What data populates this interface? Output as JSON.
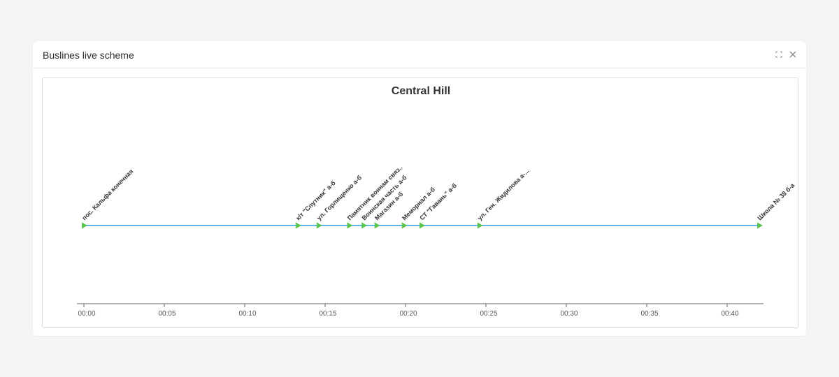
{
  "panel": {
    "title": "Buslines live scheme"
  },
  "header_icons": {
    "expand": "expand-icon",
    "close": "close-icon"
  },
  "colors": {
    "route_line": "#5bb8e8",
    "stop_marker": "#5cc44f",
    "axis": "#666666"
  },
  "chart_data": {
    "type": "line",
    "title": "Central Hill",
    "xlabel": "",
    "ylabel": "",
    "x_unit": "minutes",
    "xlim": [
      0,
      42
    ],
    "ticks": [
      {
        "value": 0,
        "label": "00:00"
      },
      {
        "value": 5,
        "label": "00:05"
      },
      {
        "value": 10,
        "label": "00:10"
      },
      {
        "value": 15,
        "label": "00:15"
      },
      {
        "value": 20,
        "label": "00:20"
      },
      {
        "value": 25,
        "label": "00:25"
      },
      {
        "value": 30,
        "label": "00:30"
      },
      {
        "value": 35,
        "label": "00:35"
      },
      {
        "value": 40,
        "label": "00:40"
      }
    ],
    "stops": [
      {
        "time": 0.0,
        "name": "пос. Кальфа конечная"
      },
      {
        "time": 13.3,
        "name": "к/т \"Спутник\" а-б"
      },
      {
        "time": 14.6,
        "name": "ул. Горлищенко а-б"
      },
      {
        "time": 16.5,
        "name": "Памятник воинам связ.."
      },
      {
        "time": 17.4,
        "name": "Воинская часть а-б"
      },
      {
        "time": 18.2,
        "name": "Магазин а-б"
      },
      {
        "time": 19.9,
        "name": "Мемориал а-б"
      },
      {
        "time": 21.0,
        "name": "СТ \"Гавань\" а-б"
      },
      {
        "time": 24.6,
        "name": "ул. Ген. Жидилова а-..."
      },
      {
        "time": 42.0,
        "name": "Школа № 38 б-а"
      }
    ]
  }
}
